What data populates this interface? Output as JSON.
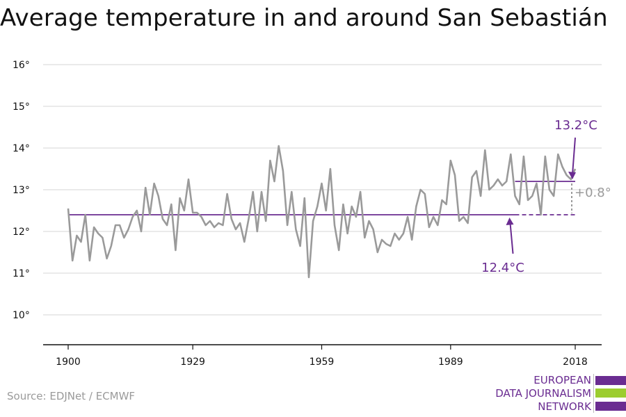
{
  "title": "Average temperature in and around San Sebastián",
  "source": "Source: EDJNet / ECMWF",
  "logo": {
    "lines": [
      "EUROPEAN",
      "DATA JOURNALISM",
      "NETWORK"
    ],
    "colors": {
      "purple": "#6a2c91",
      "green": "#9ccd2f"
    }
  },
  "chart_data": {
    "type": "line",
    "title": "Average temperature in and around San Sebastián",
    "xlabel": "",
    "ylabel": "",
    "xlim": [
      1900,
      2018
    ],
    "ylim": [
      9.3,
      16.3
    ],
    "y_ticks": [
      10,
      11,
      12,
      13,
      14,
      15,
      16
    ],
    "y_tick_labels": [
      "10°",
      "11°",
      "12°",
      "13°",
      "14°",
      "15°",
      "16°"
    ],
    "x_ticks": [
      1900,
      1929,
      1959,
      1989,
      2018
    ],
    "x_tick_labels": [
      "1900",
      "1929",
      "1959",
      "1989",
      "2018"
    ],
    "grid": "horizontal",
    "colors": {
      "series": "#9a9a9a",
      "reference": "#6a2c91",
      "difference": "#9a9a9a"
    },
    "series": [
      {
        "x": [
          1900,
          1901,
          1902,
          1903,
          1904,
          1905,
          1906,
          1907,
          1908,
          1909,
          1910,
          1911,
          1912,
          1913,
          1914,
          1915,
          1916,
          1917,
          1918,
          1919,
          1920,
          1921,
          1922,
          1923,
          1924,
          1925,
          1926,
          1927,
          1928,
          1929,
          1930,
          1931,
          1932,
          1933,
          1934,
          1935,
          1936,
          1937,
          1938,
          1939,
          1940,
          1941,
          1942,
          1943,
          1944,
          1945,
          1946,
          1947,
          1948,
          1949,
          1950,
          1951,
          1952,
          1953,
          1954,
          1955,
          1956,
          1957,
          1958,
          1959,
          1960,
          1961,
          1962,
          1963,
          1964,
          1965,
          1966,
          1967,
          1968,
          1969,
          1970,
          1971,
          1972,
          1973,
          1974,
          1975,
          1976,
          1977,
          1978,
          1979,
          1980,
          1981,
          1982,
          1983,
          1984,
          1985,
          1986,
          1987,
          1988,
          1989,
          1990,
          1991,
          1992,
          1993,
          1994,
          1995,
          1996,
          1997,
          1998,
          1999,
          2000,
          2001,
          2002,
          2003,
          2004,
          2005,
          2006,
          2007,
          2008,
          2009,
          2010,
          2011,
          2012,
          2013,
          2014,
          2015,
          2016,
          2017,
          2018
        ],
        "values": [
          12.55,
          11.3,
          11.9,
          11.75,
          12.4,
          11.3,
          12.1,
          11.95,
          11.85,
          11.35,
          11.65,
          12.15,
          12.15,
          11.85,
          12.05,
          12.35,
          12.5,
          12.0,
          13.05,
          12.4,
          13.15,
          12.85,
          12.3,
          12.15,
          12.65,
          11.55,
          12.8,
          12.5,
          13.25,
          12.45,
          12.45,
          12.35,
          12.15,
          12.25,
          12.1,
          12.2,
          12.15,
          12.9,
          12.3,
          12.05,
          12.2,
          11.75,
          12.3,
          12.95,
          12.0,
          12.95,
          12.25,
          13.7,
          13.2,
          14.05,
          13.45,
          12.15,
          12.95,
          12.05,
          11.65,
          12.8,
          10.9,
          12.25,
          12.6,
          13.15,
          12.5,
          13.5,
          12.15,
          11.55,
          12.65,
          11.95,
          12.6,
          12.35,
          12.95,
          11.85,
          12.25,
          12.05,
          11.5,
          11.8,
          11.7,
          11.65,
          11.95,
          11.8,
          11.95,
          12.35,
          11.8,
          12.6,
          13.0,
          12.9,
          12.1,
          12.35,
          12.15,
          12.75,
          12.65,
          13.7,
          13.35,
          12.25,
          12.35,
          12.2,
          13.3,
          13.45,
          12.85,
          13.95,
          13.0,
          13.1,
          13.25,
          13.1,
          13.2,
          13.85,
          12.85,
          12.65,
          13.8,
          12.75,
          12.85,
          13.15,
          12.4,
          13.8,
          13.0,
          12.85,
          13.85,
          13.55,
          13.35,
          13.25,
          13.5
        ]
      }
    ],
    "reference_lines": [
      {
        "value": 12.4,
        "x_start": 1900,
        "x_end": 2004,
        "dashed_to": 2018,
        "label": "12.4°C"
      },
      {
        "value": 13.2,
        "x_start": 2004,
        "x_end": 2018,
        "label": "13.2°C"
      }
    ],
    "difference": {
      "label": "+0.8°"
    }
  }
}
